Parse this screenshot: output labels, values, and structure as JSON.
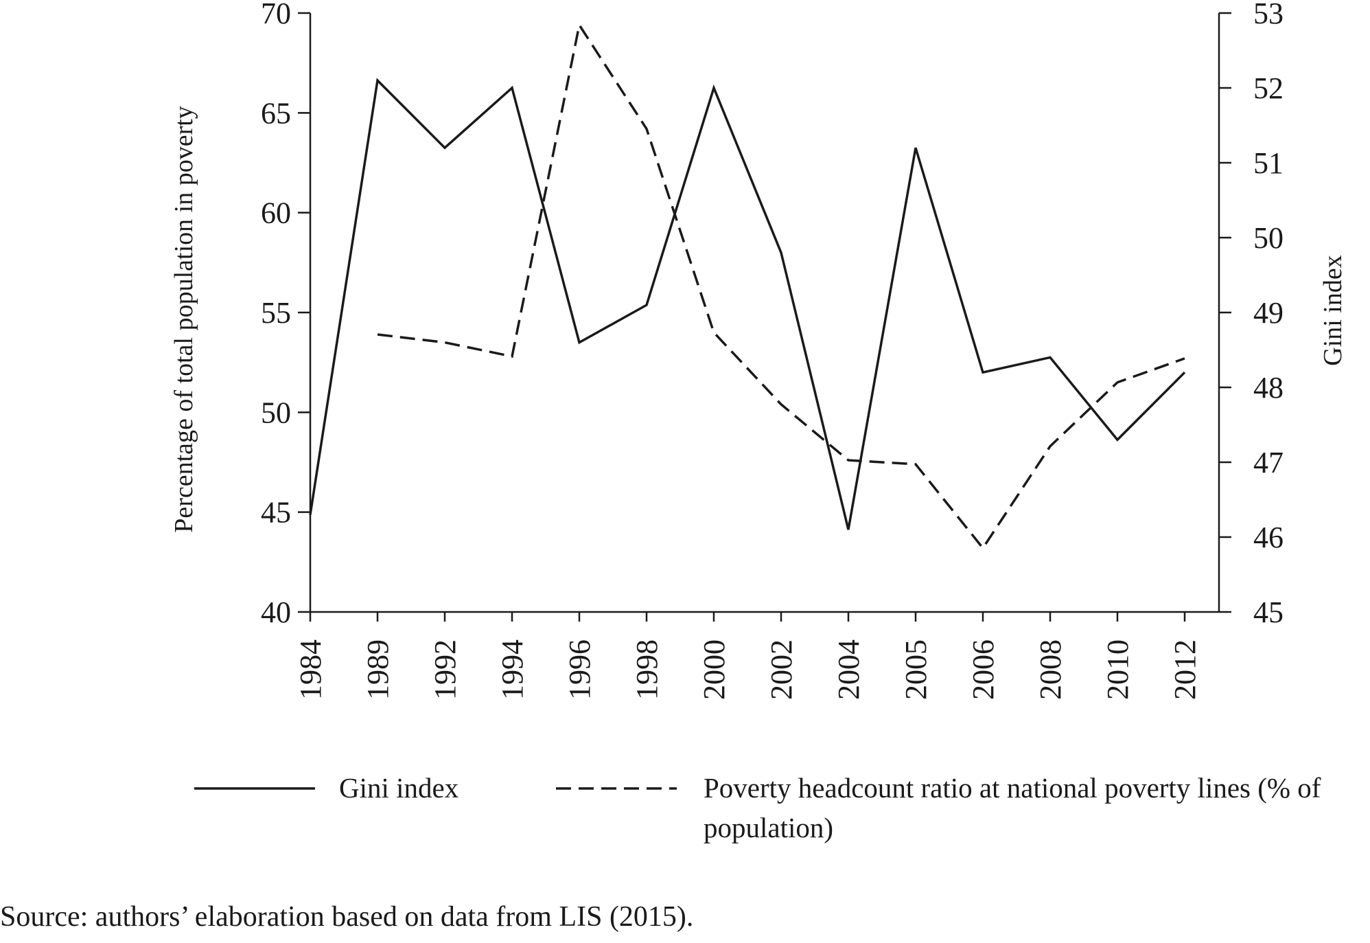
{
  "chart_data": {
    "type": "line",
    "y_label": "Percentage of total population in poverty",
    "y2_label": "Gini index",
    "categories": [
      "1984",
      "1989",
      "1992",
      "1994",
      "1996",
      "1998",
      "2000",
      "2002",
      "2004",
      "2005",
      "2006",
      "2008",
      "2010",
      "2012"
    ],
    "series": [
      {
        "name": "Gini index",
        "color": "#1a1a1a",
        "dash": "solid",
        "axis": "y2",
        "values": [
          46.3,
          52.1,
          51.2,
          52.0,
          48.6,
          49.1,
          52.0,
          49.8,
          46.1,
          51.2,
          48.2,
          48.4,
          47.3,
          48.2
        ]
      },
      {
        "name": "Poverty headcount ratio at national poverty lines (% of population)",
        "color": "#1a1a1a",
        "dash": "dashed",
        "values": [
          null,
          53.9,
          53.5,
          52.8,
          69.4,
          64.2,
          54.0,
          50.4,
          47.6,
          47.4,
          43.2,
          48.3,
          51.5,
          52.7
        ]
      }
    ],
    "ylim": [
      40,
      70
    ],
    "yticks": [
      40,
      45,
      50,
      55,
      60,
      65,
      70
    ],
    "y2lim": [
      45,
      53
    ],
    "y2ticks": [
      45,
      46,
      47,
      48,
      49,
      50,
      51,
      52,
      53
    ],
    "grid": false,
    "source": "Source: authors’ elaboration based on data from LIS (2015)."
  }
}
